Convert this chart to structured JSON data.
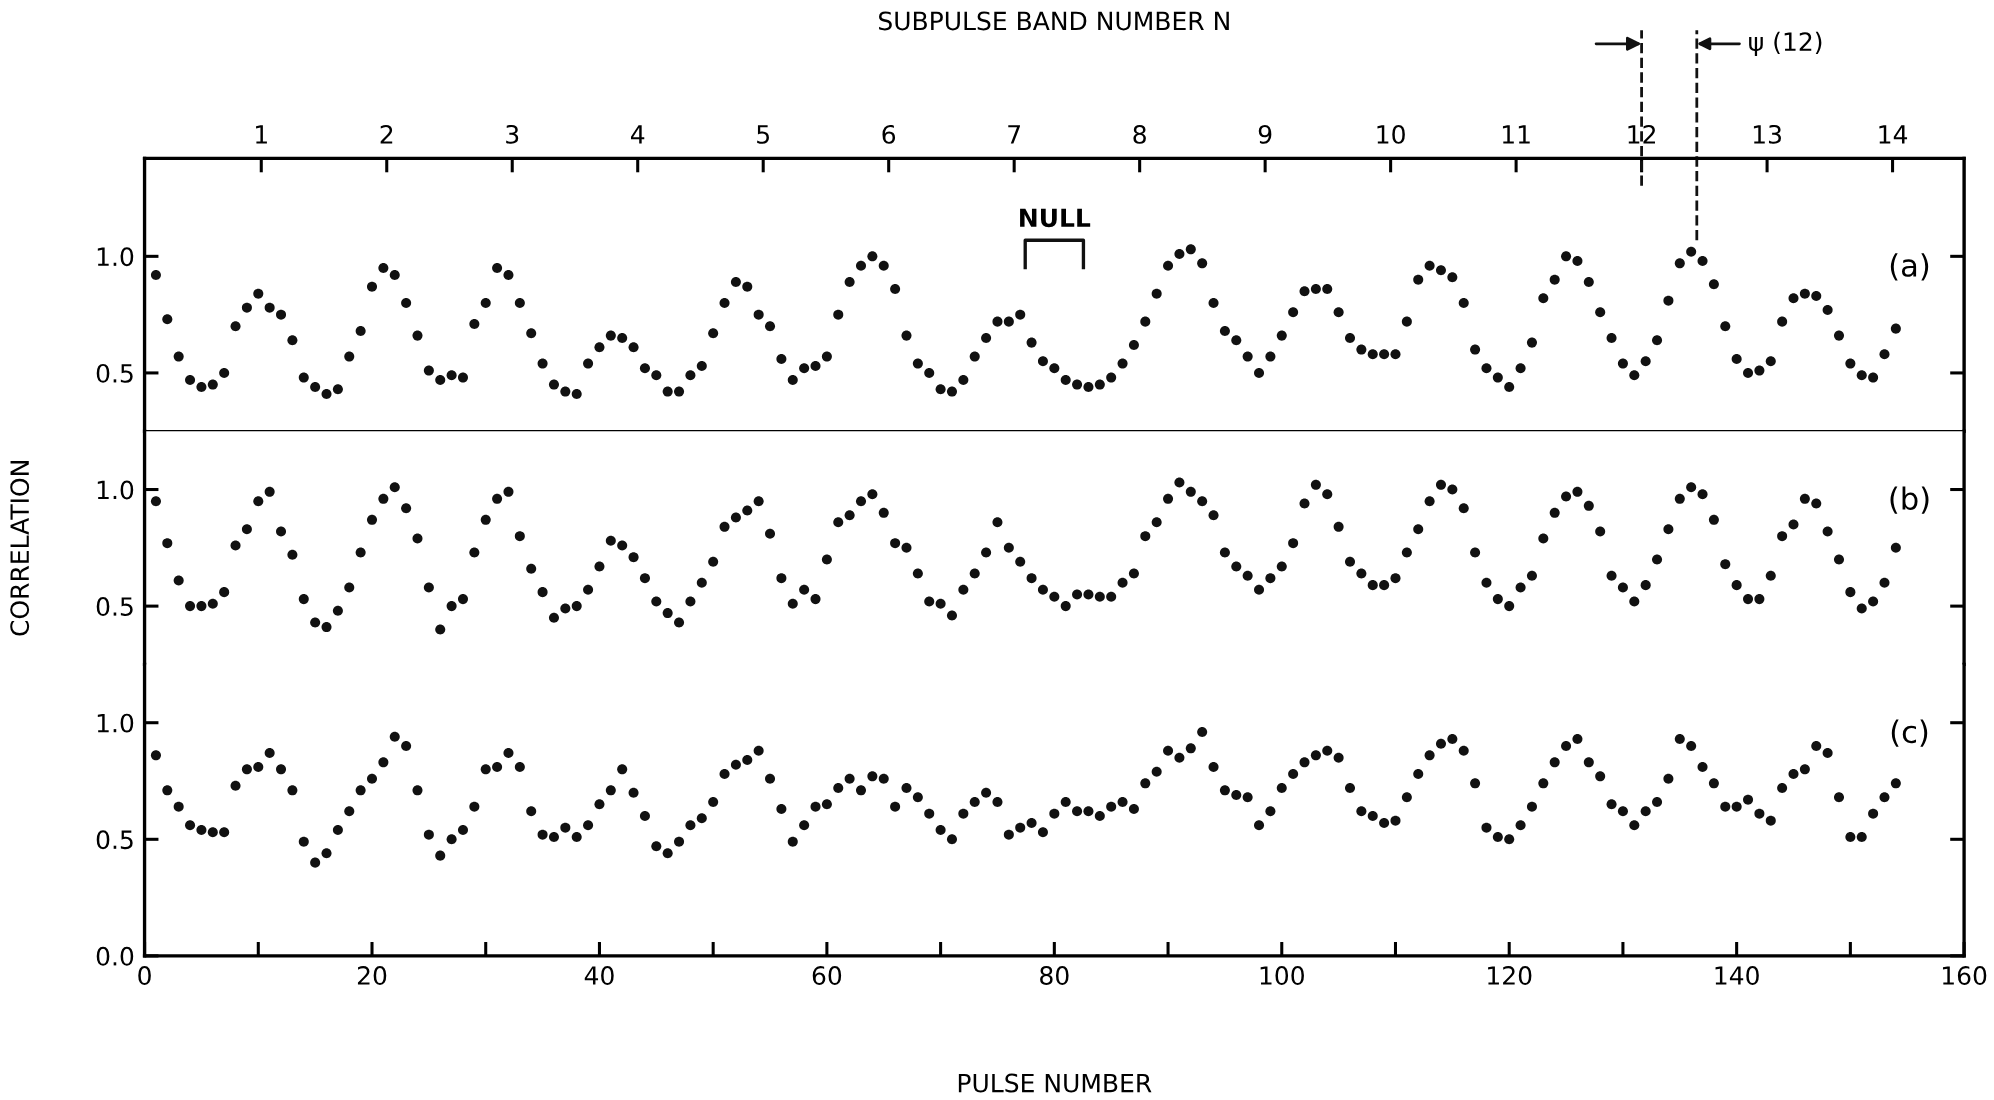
{
  "chart_data": [
    {
      "type": "scatter",
      "x2label": "SUBPULSE BAND NUMBER N",
      "xlim": [
        0,
        160
      ],
      "x2lim": [
        0.07,
        14.57
      ],
      "x2ticks": [
        1,
        2,
        3,
        4,
        5,
        6,
        7,
        8,
        9,
        10,
        11,
        12,
        13,
        14
      ],
      "ylim": [
        0.25,
        1.42
      ],
      "yticks": [
        {
          "value": 0.5,
          "label": "0.5"
        },
        {
          "value": 1.0,
          "label": "1.0"
        }
      ],
      "tick_labels": "y",
      "marker": "circle",
      "annotations": [
        "NULL"
      ],
      "ref_lines": [
        {
          "axis": "x2",
          "value": 12,
          "label": null,
          "line_style": "dashed"
        },
        {
          "axis": "x2",
          "value": 12.44,
          "label": "ψ (12)",
          "line_style": "dashed"
        }
      ],
      "x": [
        1,
        2,
        3,
        4,
        5,
        6,
        7,
        8,
        9,
        10,
        11,
        12,
        13,
        14,
        15,
        16,
        17,
        18,
        19,
        20,
        21,
        22,
        23,
        24,
        25,
        26,
        27,
        28,
        29,
        30,
        31,
        32,
        33,
        34,
        35,
        36,
        37,
        38,
        39,
        40,
        41,
        42,
        43,
        44,
        45,
        46,
        47,
        48,
        49,
        50,
        51,
        52,
        53,
        54,
        55,
        56,
        57,
        58,
        59,
        60,
        61,
        62,
        63,
        64,
        65,
        66,
        67,
        68,
        69,
        70,
        71,
        72,
        73,
        74,
        75,
        76,
        77,
        78,
        79,
        80,
        81,
        82,
        83,
        84,
        85,
        86,
        87,
        88,
        89,
        90,
        91,
        92,
        93,
        94,
        95,
        96,
        97,
        98,
        99,
        100,
        101,
        102,
        103,
        104,
        105,
        106,
        107,
        108,
        109,
        110,
        111,
        112,
        113,
        114,
        115,
        116,
        117,
        118,
        119,
        120,
        121,
        122,
        123,
        124,
        125,
        126,
        127,
        128,
        129,
        130,
        131,
        132,
        133,
        134,
        135,
        136,
        137,
        138,
        139,
        140,
        141,
        142,
        143,
        144,
        145,
        146,
        147,
        148,
        149,
        150,
        151,
        152,
        153,
        154
      ],
      "series": [
        {
          "name": "(a)",
          "color": "#111111",
          "values": [
            0.92,
            0.73,
            0.57,
            0.47,
            0.44,
            0.45,
            0.5,
            0.7,
            0.78,
            0.84,
            0.78,
            0.75,
            0.64,
            0.48,
            0.44,
            0.41,
            0.43,
            0.57,
            0.68,
            0.87,
            0.95,
            0.92,
            0.8,
            0.66,
            0.51,
            0.47,
            0.49,
            0.48,
            0.71,
            0.8,
            0.95,
            0.92,
            0.8,
            0.67,
            0.54,
            0.45,
            0.42,
            0.41,
            0.54,
            0.61,
            0.66,
            0.65,
            0.61,
            0.52,
            0.49,
            0.42,
            0.42,
            0.49,
            0.53,
            0.67,
            0.8,
            0.89,
            0.87,
            0.75,
            0.7,
            0.56,
            0.47,
            0.52,
            0.53,
            0.57,
            0.75,
            0.89,
            0.96,
            1.0,
            0.96,
            0.86,
            0.66,
            0.54,
            0.5,
            0.43,
            0.42,
            0.47,
            0.57,
            0.65,
            0.72,
            0.72,
            0.75,
            0.63,
            0.55,
            0.52,
            0.47,
            0.45,
            0.44,
            0.45,
            0.48,
            0.54,
            0.62,
            0.72,
            0.84,
            0.96,
            1.01,
            1.03,
            0.97,
            0.8,
            0.68,
            0.64,
            0.57,
            0.5,
            0.57,
            0.66,
            0.76,
            0.85,
            0.86,
            0.86,
            0.76,
            0.65,
            0.6,
            0.58,
            0.58,
            0.58,
            0.72,
            0.9,
            0.96,
            0.94,
            0.91,
            0.8,
            0.6,
            0.52,
            0.48,
            0.44,
            0.52,
            0.63,
            0.82,
            0.9,
            1.0,
            0.98,
            0.89,
            0.76,
            0.65,
            0.54,
            0.49,
            0.55,
            0.64,
            0.81,
            0.97,
            1.02,
            0.98,
            0.88,
            0.7,
            0.56,
            0.5,
            0.51,
            0.55,
            0.72,
            0.82,
            0.84,
            0.83,
            0.77,
            0.66,
            0.54,
            0.49,
            0.48,
            0.58,
            0.69
          ]
        }
      ]
    },
    {
      "type": "scatter",
      "ylabel": "CORRELATION",
      "xlim": [
        0,
        160
      ],
      "ylim": [
        0.25,
        1.25
      ],
      "yticks": [
        {
          "value": 0.5,
          "label": "0.5"
        },
        {
          "value": 1.0,
          "label": "1.0"
        }
      ],
      "tick_labels": "y",
      "marker": "circle",
      "x": [
        1,
        2,
        3,
        4,
        5,
        6,
        7,
        8,
        9,
        10,
        11,
        12,
        13,
        14,
        15,
        16,
        17,
        18,
        19,
        20,
        21,
        22,
        23,
        24,
        25,
        26,
        27,
        28,
        29,
        30,
        31,
        32,
        33,
        34,
        35,
        36,
        37,
        38,
        39,
        40,
        41,
        42,
        43,
        44,
        45,
        46,
        47,
        48,
        49,
        50,
        51,
        52,
        53,
        54,
        55,
        56,
        57,
        58,
        59,
        60,
        61,
        62,
        63,
        64,
        65,
        66,
        67,
        68,
        69,
        70,
        71,
        72,
        73,
        74,
        75,
        76,
        77,
        78,
        79,
        80,
        81,
        82,
        83,
        84,
        85,
        86,
        87,
        88,
        89,
        90,
        91,
        92,
        93,
        94,
        95,
        96,
        97,
        98,
        99,
        100,
        101,
        102,
        103,
        104,
        105,
        106,
        107,
        108,
        109,
        110,
        111,
        112,
        113,
        114,
        115,
        116,
        117,
        118,
        119,
        120,
        121,
        122,
        123,
        124,
        125,
        126,
        127,
        128,
        129,
        130,
        131,
        132,
        133,
        134,
        135,
        136,
        137,
        138,
        139,
        140,
        141,
        142,
        143,
        144,
        145,
        146,
        147,
        148,
        149,
        150,
        151,
        152,
        153,
        154
      ],
      "series": [
        {
          "name": "(b)",
          "color": "#111111",
          "values": [
            0.95,
            0.77,
            0.61,
            0.5,
            0.5,
            0.51,
            0.56,
            0.76,
            0.83,
            0.95,
            0.99,
            0.82,
            0.72,
            0.53,
            0.43,
            0.41,
            0.48,
            0.58,
            0.73,
            0.87,
            0.96,
            1.01,
            0.92,
            0.79,
            0.58,
            0.4,
            0.5,
            0.53,
            0.73,
            0.87,
            0.96,
            0.99,
            0.8,
            0.66,
            0.56,
            0.45,
            0.49,
            0.5,
            0.57,
            0.67,
            0.78,
            0.76,
            0.71,
            0.62,
            0.52,
            0.47,
            0.43,
            0.52,
            0.6,
            0.69,
            0.84,
            0.88,
            0.91,
            0.95,
            0.81,
            0.62,
            0.51,
            0.57,
            0.53,
            0.7,
            0.86,
            0.89,
            0.95,
            0.98,
            0.9,
            0.77,
            0.75,
            0.64,
            0.52,
            0.51,
            0.46,
            0.57,
            0.64,
            0.73,
            0.86,
            0.75,
            0.69,
            0.62,
            0.57,
            0.54,
            0.5,
            0.55,
            0.55,
            0.54,
            0.54,
            0.6,
            0.64,
            0.8,
            0.86,
            0.96,
            1.03,
            0.99,
            0.95,
            0.89,
            0.73,
            0.67,
            0.63,
            0.57,
            0.62,
            0.67,
            0.77,
            0.94,
            1.02,
            0.98,
            0.84,
            0.69,
            0.64,
            0.59,
            0.59,
            0.62,
            0.73,
            0.83,
            0.95,
            1.02,
            1.0,
            0.92,
            0.73,
            0.6,
            0.53,
            0.5,
            0.58,
            0.63,
            0.79,
            0.9,
            0.97,
            0.99,
            0.93,
            0.82,
            0.63,
            0.58,
            0.52,
            0.59,
            0.7,
            0.83,
            0.96,
            1.01,
            0.98,
            0.87,
            0.68,
            0.59,
            0.53,
            0.53,
            0.63,
            0.8,
            0.85,
            0.96,
            0.94,
            0.82,
            0.7,
            0.56,
            0.49,
            0.52,
            0.6,
            0.75
          ]
        }
      ]
    },
    {
      "type": "scatter",
      "xlabel": "PULSE NUMBER",
      "xlim": [
        0,
        160
      ],
      "xticks": [
        0,
        {
          "value": 10,
          "label": null
        },
        20,
        {
          "value": 30,
          "label": null
        },
        40,
        {
          "value": 50,
          "label": null
        },
        60,
        {
          "value": 70,
          "label": null
        },
        80,
        {
          "value": 90,
          "label": null
        },
        100,
        {
          "value": 110,
          "label": null
        },
        120,
        {
          "value": 130,
          "label": null
        },
        140,
        {
          "value": 150,
          "label": null
        },
        160
      ],
      "ylim": [
        0,
        1.25
      ],
      "yticks": [
        {
          "value": 0,
          "label": "0.0"
        },
        {
          "value": 0.5,
          "label": "0.5"
        },
        {
          "value": 1.0,
          "label": "1.0"
        }
      ],
      "marker": "circle",
      "x": [
        1,
        2,
        3,
        4,
        5,
        6,
        7,
        8,
        9,
        10,
        11,
        12,
        13,
        14,
        15,
        16,
        17,
        18,
        19,
        20,
        21,
        22,
        23,
        24,
        25,
        26,
        27,
        28,
        29,
        30,
        31,
        32,
        33,
        34,
        35,
        36,
        37,
        38,
        39,
        40,
        41,
        42,
        43,
        44,
        45,
        46,
        47,
        48,
        49,
        50,
        51,
        52,
        53,
        54,
        55,
        56,
        57,
        58,
        59,
        60,
        61,
        62,
        63,
        64,
        65,
        66,
        67,
        68,
        69,
        70,
        71,
        72,
        73,
        74,
        75,
        76,
        77,
        78,
        79,
        80,
        81,
        82,
        83,
        84,
        85,
        86,
        87,
        88,
        89,
        90,
        91,
        92,
        93,
        94,
        95,
        96,
        97,
        98,
        99,
        100,
        101,
        102,
        103,
        104,
        105,
        106,
        107,
        108,
        109,
        110,
        111,
        112,
        113,
        114,
        115,
        116,
        117,
        118,
        119,
        120,
        121,
        122,
        123,
        124,
        125,
        126,
        127,
        128,
        129,
        130,
        131,
        132,
        133,
        134,
        135,
        136,
        137,
        138,
        139,
        140,
        141,
        142,
        143,
        144,
        145,
        146,
        147,
        148,
        149,
        150,
        151,
        152,
        153,
        154
      ],
      "series": [
        {
          "name": "(c)",
          "color": "#111111",
          "values": [
            0.86,
            0.71,
            0.64,
            0.56,
            0.54,
            0.53,
            0.53,
            0.73,
            0.8,
            0.81,
            0.87,
            0.8,
            0.71,
            0.49,
            0.4,
            0.44,
            0.54,
            0.62,
            0.71,
            0.76,
            0.83,
            0.94,
            0.9,
            0.71,
            0.52,
            0.43,
            0.5,
            0.54,
            0.64,
            0.8,
            0.81,
            0.87,
            0.81,
            0.62,
            0.52,
            0.51,
            0.55,
            0.51,
            0.56,
            0.65,
            0.71,
            0.8,
            0.7,
            0.6,
            0.47,
            0.44,
            0.49,
            0.56,
            0.59,
            0.66,
            0.78,
            0.82,
            0.84,
            0.88,
            0.76,
            0.63,
            0.49,
            0.56,
            0.64,
            0.65,
            0.72,
            0.76,
            0.71,
            0.77,
            0.76,
            0.64,
            0.72,
            0.68,
            0.61,
            0.54,
            0.5,
            0.61,
            0.66,
            0.7,
            0.66,
            0.52,
            0.55,
            0.57,
            0.53,
            0.61,
            0.66,
            0.62,
            0.62,
            0.6,
            0.64,
            0.66,
            0.63,
            0.74,
            0.79,
            0.88,
            0.85,
            0.89,
            0.96,
            0.81,
            0.71,
            0.69,
            0.68,
            0.56,
            0.62,
            0.72,
            0.78,
            0.83,
            0.86,
            0.88,
            0.85,
            0.72,
            0.62,
            0.6,
            0.57,
            0.58,
            0.68,
            0.78,
            0.86,
            0.91,
            0.93,
            0.88,
            0.74,
            0.55,
            0.51,
            0.5,
            0.56,
            0.64,
            0.74,
            0.83,
            0.9,
            0.93,
            0.83,
            0.77,
            0.65,
            0.62,
            0.56,
            0.62,
            0.66,
            0.76,
            0.93,
            0.9,
            0.81,
            0.74,
            0.64,
            0.64,
            0.67,
            0.61,
            0.58,
            0.72,
            0.78,
            0.8,
            0.9,
            0.87,
            0.68,
            0.51,
            0.51,
            0.61,
            0.68,
            0.74
          ]
        }
      ]
    }
  ]
}
